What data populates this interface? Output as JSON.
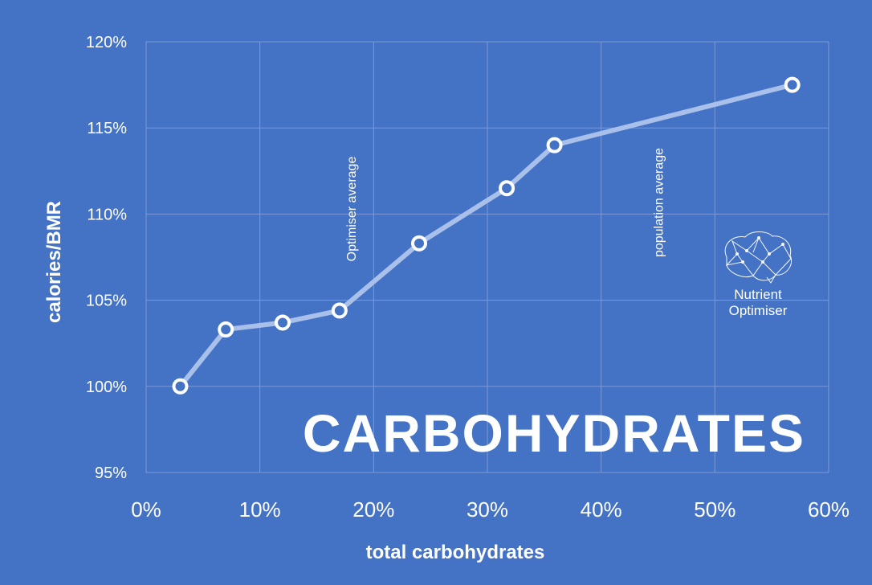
{
  "chart_data": {
    "type": "line",
    "title": "CARBOHYDRATES",
    "xlabel": "total carbohydrates",
    "ylabel": "calories/BMR",
    "xlim": [
      0,
      60
    ],
    "ylim": [
      95,
      120
    ],
    "x_ticks": [
      "0%",
      "10%",
      "20%",
      "30%",
      "40%",
      "50%",
      "60%"
    ],
    "y_ticks": [
      "95%",
      "100%",
      "105%",
      "110%",
      "115%",
      "120%"
    ],
    "grid": true,
    "series": [
      {
        "x": [
          3,
          7,
          12,
          17,
          24,
          31.7,
          35.9,
          56.8
        ],
        "y": [
          100.0,
          103.3,
          103.7,
          104.4,
          108.3,
          111.5,
          114.0,
          117.5
        ]
      }
    ],
    "annotations": [
      {
        "text": "Optimiser average",
        "x": 18
      },
      {
        "text": "population average",
        "x": 45
      }
    ]
  },
  "logo": {
    "line1": "Nutrient",
    "line2": "Optimiser"
  },
  "colors": {
    "background": "#4472c4",
    "line": "#a9c0ea",
    "grid": "#7d9ad8",
    "marker_fill": "#4472c4",
    "marker_stroke": "#ffffff",
    "text": "#ffffff"
  }
}
